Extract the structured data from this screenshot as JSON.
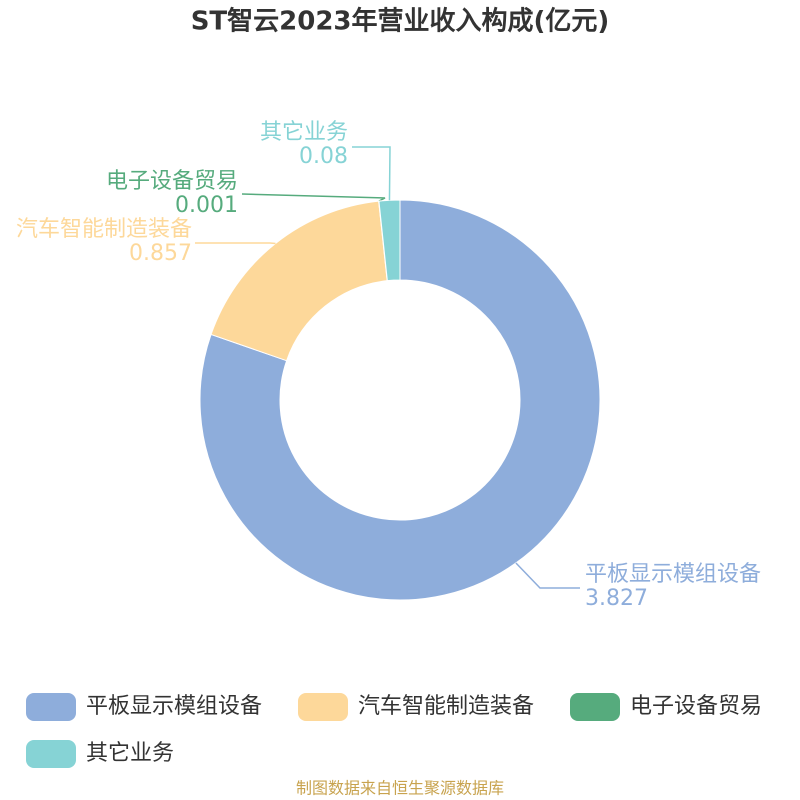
{
  "chart_data": {
    "type": "pie",
    "title": "ST智云2023年营业收入构成(亿元)",
    "categories": [
      "平板显示模组设备",
      "汽车智能制造装备",
      "电子设备贸易",
      "其它业务"
    ],
    "values": [
      3.827,
      0.857,
      0.001,
      0.08
    ],
    "colors": [
      "#8eaddb",
      "#fdd89a",
      "#56ab7d",
      "#86d3d5"
    ],
    "legend": "bottom",
    "source": "制图数据来自恒生聚源数据库"
  }
}
